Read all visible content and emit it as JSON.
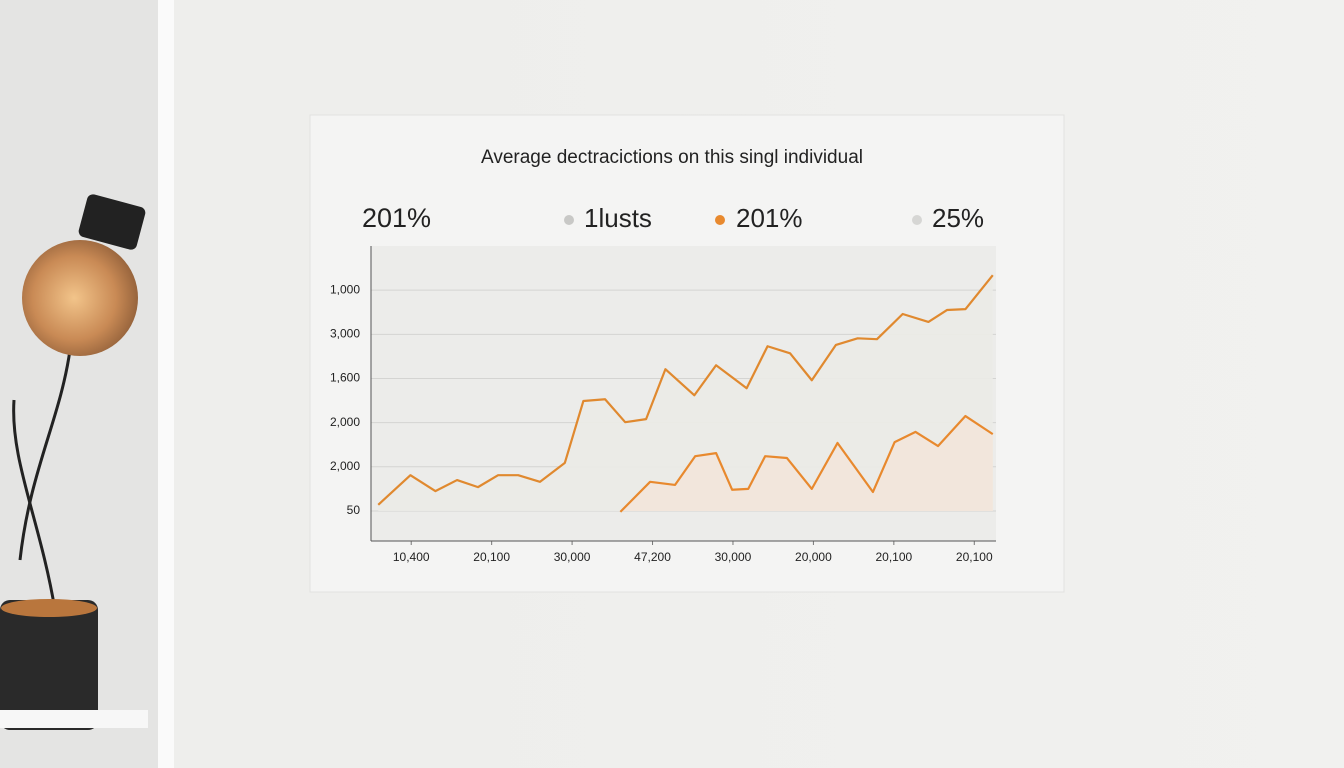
{
  "chart_data": {
    "type": "line",
    "title": "Average dectracictions on this singl individual",
    "header_value": "201%",
    "legend": [
      {
        "label": "1lusts",
        "color": "#c8c8c6"
      },
      {
        "label": "201%",
        "color": "#e8892e"
      },
      {
        "label": "25%",
        "color": "#d6d6d4"
      }
    ],
    "xlim": [
      -0.5,
      7.27
    ],
    "xticks": [
      {
        "value": 0,
        "label": "10,400"
      },
      {
        "value": 1,
        "label": "20,100"
      },
      {
        "value": 2,
        "label": "30,000"
      },
      {
        "value": 3,
        "label": "47,200"
      },
      {
        "value": 4,
        "label": "30,000"
      },
      {
        "value": 5,
        "label": "20,000"
      },
      {
        "value": 6,
        "label": "20,100"
      },
      {
        "value": 7,
        "label": "20,100"
      }
    ],
    "ylim": [
      -0.68,
      6.0
    ],
    "yticks": [
      {
        "value": 0,
        "label": "50"
      },
      {
        "value": 1,
        "label": "2,000"
      },
      {
        "value": 2,
        "label": "2,000"
      },
      {
        "value": 3,
        "label": "1,600"
      },
      {
        "value": 4,
        "label": "3,000"
      },
      {
        "value": 5,
        "label": "1,000"
      }
    ],
    "grid": true,
    "series": [
      {
        "color": "#e0892f",
        "area_color": "#ebebe7",
        "x": [
          -0.41,
          -0.01,
          0.3,
          0.57,
          0.83,
          1.08,
          1.33,
          1.6,
          1.91,
          2.14,
          2.41,
          2.66,
          2.92,
          3.16,
          3.52,
          3.79,
          4.17,
          4.43,
          4.71,
          4.98,
          5.28,
          5.55,
          5.79,
          6.11,
          6.43,
          6.66,
          6.89,
          7.23
        ],
        "values": [
          0.14,
          0.81,
          0.45,
          0.7,
          0.54,
          0.81,
          0.81,
          0.66,
          1.09,
          2.49,
          2.53,
          2.01,
          2.08,
          3.21,
          2.62,
          3.3,
          2.78,
          3.73,
          3.57,
          2.96,
          3.76,
          3.91,
          3.89,
          4.46,
          4.28,
          4.55,
          4.57,
          5.34
        ]
      },
      {
        "color": "#e8892e",
        "area_color": "#f3e6da",
        "x": [
          2.6,
          2.97,
          3.28,
          3.53,
          3.79,
          3.99,
          4.19,
          4.4,
          4.67,
          4.98,
          5.3,
          5.74,
          6.01,
          6.27,
          6.55,
          6.89,
          7.23
        ],
        "values": [
          -0.02,
          0.66,
          0.59,
          1.24,
          1.31,
          0.48,
          0.5,
          1.24,
          1.2,
          0.5,
          1.54,
          0.43,
          1.56,
          1.79,
          1.47,
          2.15,
          1.74
        ]
      }
    ]
  }
}
